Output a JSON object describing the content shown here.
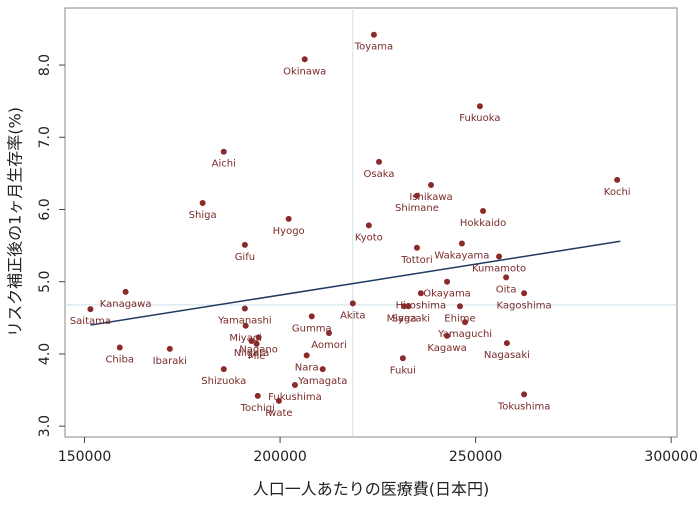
{
  "chart_data": {
    "type": "scatter",
    "x_label": "人口一人あたりの医療費(日本円)",
    "y_label": "リスク補正後の1ヶ月生存率(%)",
    "xlim": [
      145000,
      301500
    ],
    "ylim": [
      2.85,
      8.79
    ],
    "xticks": [
      150000,
      200000,
      250000,
      300000
    ],
    "yticks": [
      {
        "value": 3,
        "label": "3.0"
      },
      {
        "value": 4,
        "label": "4.0"
      },
      {
        "value": 5,
        "label": "5.0"
      },
      {
        "value": 6,
        "label": "6.0"
      },
      {
        "value": 7,
        "label": "7.0"
      },
      {
        "value": 8,
        "label": "8.0"
      }
    ],
    "xline": 218600,
    "yline": 4.68,
    "series": [
      {
        "color": "#8b2a2a",
        "labels": [
          "Toyama",
          "Okinawa",
          "Fukuoka",
          "Kochi",
          "Aichi",
          "Osaka",
          "Ishikawa",
          "Shimane",
          "Shiga",
          "Hokkaido",
          "Hyogo",
          "Kyoto",
          "Gifu",
          "Tottori",
          "Wakayama",
          "Kumamoto",
          "Oita",
          "Kanagawa",
          "Kagoshima",
          "Okayama",
          "Saitama",
          "Yamanashi",
          "Akita",
          "Gumma",
          "Hiroshima",
          "Saga",
          "Miyazaki",
          "Ehime",
          "Yamaguchi",
          "Kagawa",
          "Nagasaki",
          "Aomori",
          "Miyagi",
          "Nagano",
          "Niigata",
          "Mie",
          "Chiba",
          "Ibaraki",
          "Nara",
          "Yamagata",
          "Fukui",
          "Shizuoka",
          "Fukushima",
          "Tochigi",
          "Iwate",
          "Tokushima"
        ],
        "x": [
          224000,
          206300,
          251100,
          286200,
          185600,
          225300,
          238600,
          235000,
          180200,
          251900,
          202200,
          222700,
          191000,
          235000,
          246500,
          256000,
          257800,
          160500,
          262400,
          242700,
          151500,
          191000,
          218600,
          208100,
          236000,
          231700,
          232800,
          246000,
          247300,
          242700,
          258000,
          212500,
          191200,
          194500,
          192700,
          194000,
          159000,
          171800,
          206800,
          210900,
          231400,
          185600,
          203800,
          194300,
          199700,
          262400
        ],
        "values": [
          8.42,
          8.08,
          7.43,
          6.41,
          6.8,
          6.66,
          6.34,
          6.19,
          6.09,
          5.98,
          5.87,
          5.78,
          5.51,
          5.47,
          5.53,
          5.35,
          5.06,
          4.86,
          4.84,
          5.0,
          4.62,
          4.63,
          4.7,
          4.52,
          4.84,
          4.66,
          4.66,
          4.66,
          4.44,
          4.25,
          4.15,
          4.29,
          4.39,
          4.23,
          4.18,
          4.14,
          4.09,
          4.07,
          3.98,
          3.79,
          3.94,
          3.79,
          3.57,
          3.42,
          3.35,
          3.44
        ]
      }
    ],
    "fit_line": {
      "color": "#1f3a5f",
      "x": [
        151500,
        287000
      ],
      "values": [
        4.4,
        5.56
      ]
    }
  }
}
